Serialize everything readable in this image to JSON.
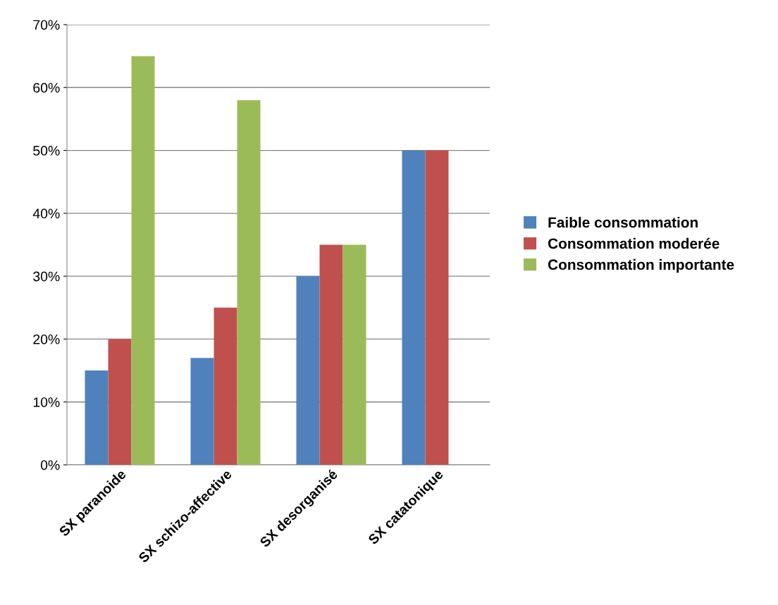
{
  "chart_data": {
    "type": "bar",
    "categories": [
      "SX paranoide",
      "SX schizo-affective",
      "SX desorganisé",
      "SX catatonique"
    ],
    "series": [
      {
        "name": "Faible consommation",
        "color": "#4f81bd",
        "values": [
          15,
          17,
          30,
          50
        ]
      },
      {
        "name": "Consommation moderée",
        "color": "#c0504d",
        "values": [
          20,
          25,
          35,
          50
        ]
      },
      {
        "name": "Consommation importante",
        "color": "#9bbb59",
        "values": [
          65,
          58,
          35,
          null
        ]
      }
    ],
    "ylim": [
      0,
      70
    ],
    "yticks": [
      {
        "value": 0,
        "label": "0%"
      },
      {
        "value": 10,
        "label": "10%"
      },
      {
        "value": 20,
        "label": "20%"
      },
      {
        "value": 30,
        "label": "30%"
      },
      {
        "value": 40,
        "label": "40%"
      },
      {
        "value": 50,
        "label": "50%"
      },
      {
        "value": 60,
        "label": "60%"
      },
      {
        "value": 70,
        "label": "70%"
      }
    ],
    "grid": "y",
    "legend": "right"
  }
}
